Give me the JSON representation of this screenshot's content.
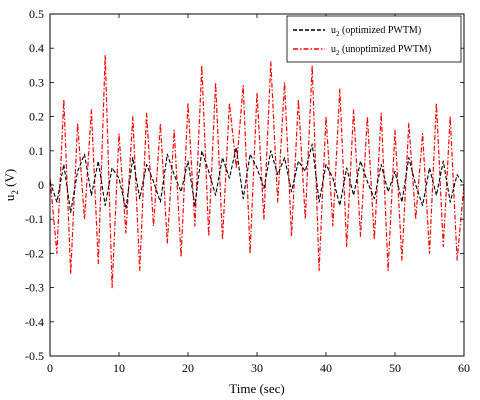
{
  "chart_data": {
    "type": "line",
    "title": "",
    "xlabel": "Time (sec)",
    "ylabel": "u2 (V)",
    "ylabel_parts": {
      "base": "u",
      "sub": "2",
      "rest": " (V)"
    },
    "xlim": [
      0,
      60
    ],
    "ylim": [
      -0.5,
      0.5
    ],
    "xticks": [
      0,
      10,
      20,
      30,
      40,
      50,
      60
    ],
    "xtick_labels": [
      "0",
      "10",
      "20",
      "30",
      "40",
      "50",
      "60"
    ],
    "yticks": [
      -0.5,
      -0.4,
      -0.3,
      -0.2,
      -0.1,
      0,
      0.1,
      0.2,
      0.3,
      0.4,
      0.5
    ],
    "ytick_labels": [
      "-0.5",
      "-0.4",
      "-0.3",
      "-0.2",
      "-0.1",
      "0",
      "0.1",
      "0.2",
      "0.3",
      "0.4",
      "0.5"
    ],
    "grid": false,
    "legend_position": "top-right",
    "x": [
      0,
      1,
      2,
      3,
      4,
      5,
      6,
      7,
      8,
      9,
      10,
      11,
      12,
      13,
      14,
      15,
      16,
      17,
      18,
      19,
      20,
      21,
      22,
      23,
      24,
      25,
      26,
      27,
      28,
      29,
      30,
      31,
      32,
      33,
      34,
      35,
      36,
      37,
      38,
      39,
      40,
      41,
      42,
      43,
      44,
      45,
      46,
      47,
      48,
      49,
      50,
      51,
      52,
      53,
      54,
      55,
      56,
      57,
      58,
      59,
      60
    ],
    "series": [
      {
        "name": "u2 (optimized PWTM)",
        "label_parts": {
          "base": "u",
          "sub": "2",
          "rest": " (optimized PWTM)"
        },
        "color": "#000000",
        "style": "dashed",
        "values": [
          0.01,
          -0.05,
          0.06,
          -0.08,
          0.04,
          0.09,
          -0.03,
          0.07,
          -0.06,
          0.05,
          0.02,
          -0.07,
          0.08,
          -0.04,
          0.06,
          0.01,
          -0.05,
          0.09,
          0.03,
          -0.02,
          0.07,
          -0.06,
          0.1,
          0.04,
          -0.03,
          0.08,
          0.02,
          0.11,
          -0.04,
          0.09,
          0.05,
          -0.01,
          0.1,
          0.03,
          0.08,
          -0.02,
          0.07,
          0.04,
          0.12,
          -0.05,
          0.06,
          0.02,
          -0.06,
          0.05,
          -0.03,
          0.07,
          0.01,
          -0.04,
          0.06,
          -0.02,
          0.04,
          -0.05,
          0.08,
          0.0,
          -0.06,
          0.05,
          -0.03,
          0.07,
          -0.05,
          0.03,
          0.0
        ]
      },
      {
        "name": "u2 (unoptimized PWTM)",
        "label_parts": {
          "base": "u",
          "sub": "2",
          "rest": " (unoptimized PWTM)"
        },
        "color": "#ff0000",
        "style": "dashdot",
        "values": [
          0.02,
          -0.2,
          0.25,
          -0.26,
          0.18,
          -0.1,
          0.22,
          -0.23,
          0.38,
          -0.3,
          0.15,
          -0.14,
          0.2,
          -0.25,
          0.21,
          -0.12,
          0.18,
          -0.17,
          0.16,
          -0.21,
          0.24,
          -0.12,
          0.35,
          -0.15,
          0.3,
          -0.16,
          0.24,
          0.05,
          0.29,
          -0.2,
          0.27,
          -0.1,
          0.36,
          -0.05,
          0.3,
          -0.15,
          0.25,
          -0.1,
          0.35,
          -0.25,
          0.2,
          -0.12,
          0.28,
          -0.18,
          0.22,
          -0.15,
          0.2,
          -0.16,
          0.21,
          -0.25,
          0.16,
          -0.22,
          0.18,
          -0.1,
          0.15,
          -0.2,
          0.24,
          -0.18,
          0.2,
          -0.22,
          0.0
        ]
      }
    ]
  }
}
